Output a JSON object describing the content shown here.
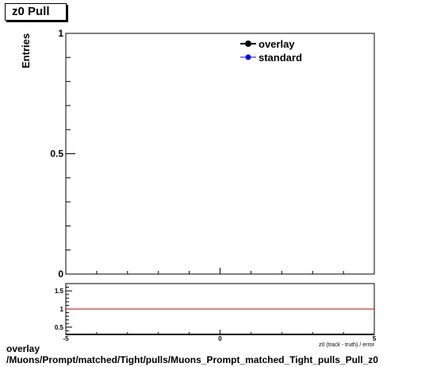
{
  "title": "z0 Pull",
  "caption": {
    "line1": "overlay",
    "line2": "/Muons/Prompt/matched/Tight/pulls/Muons_Prompt_matched_Tight_pulls_Pull_z0"
  },
  "colors": {
    "overlay": "#000000",
    "standard": "#0000ff",
    "ratio_line": "#cc0000"
  },
  "chart_data": [
    {
      "type": "line",
      "title": "z0 Pull",
      "xlabel": "z0 (track - truth) / error",
      "ylabel": "Entries",
      "xlim": [
        -5,
        5
      ],
      "ylim": [
        0,
        1
      ],
      "y_ticks": [
        "0",
        "0.5",
        "1"
      ],
      "legend": {
        "placement": "top-right",
        "entries": [
          "overlay",
          "standard"
        ]
      },
      "series": [
        {
          "name": "overlay",
          "x": [],
          "y": []
        },
        {
          "name": "standard",
          "x": [],
          "y": []
        }
      ],
      "grid": false
    },
    {
      "type": "line",
      "xlim": [
        -5,
        5
      ],
      "ylim": [
        0.3,
        1.7
      ],
      "x_ticks": [
        "-5",
        "0",
        "5"
      ],
      "y_ticks": [
        "0.5",
        "1",
        "1.5"
      ],
      "reference_line": 1,
      "grid": false
    }
  ]
}
